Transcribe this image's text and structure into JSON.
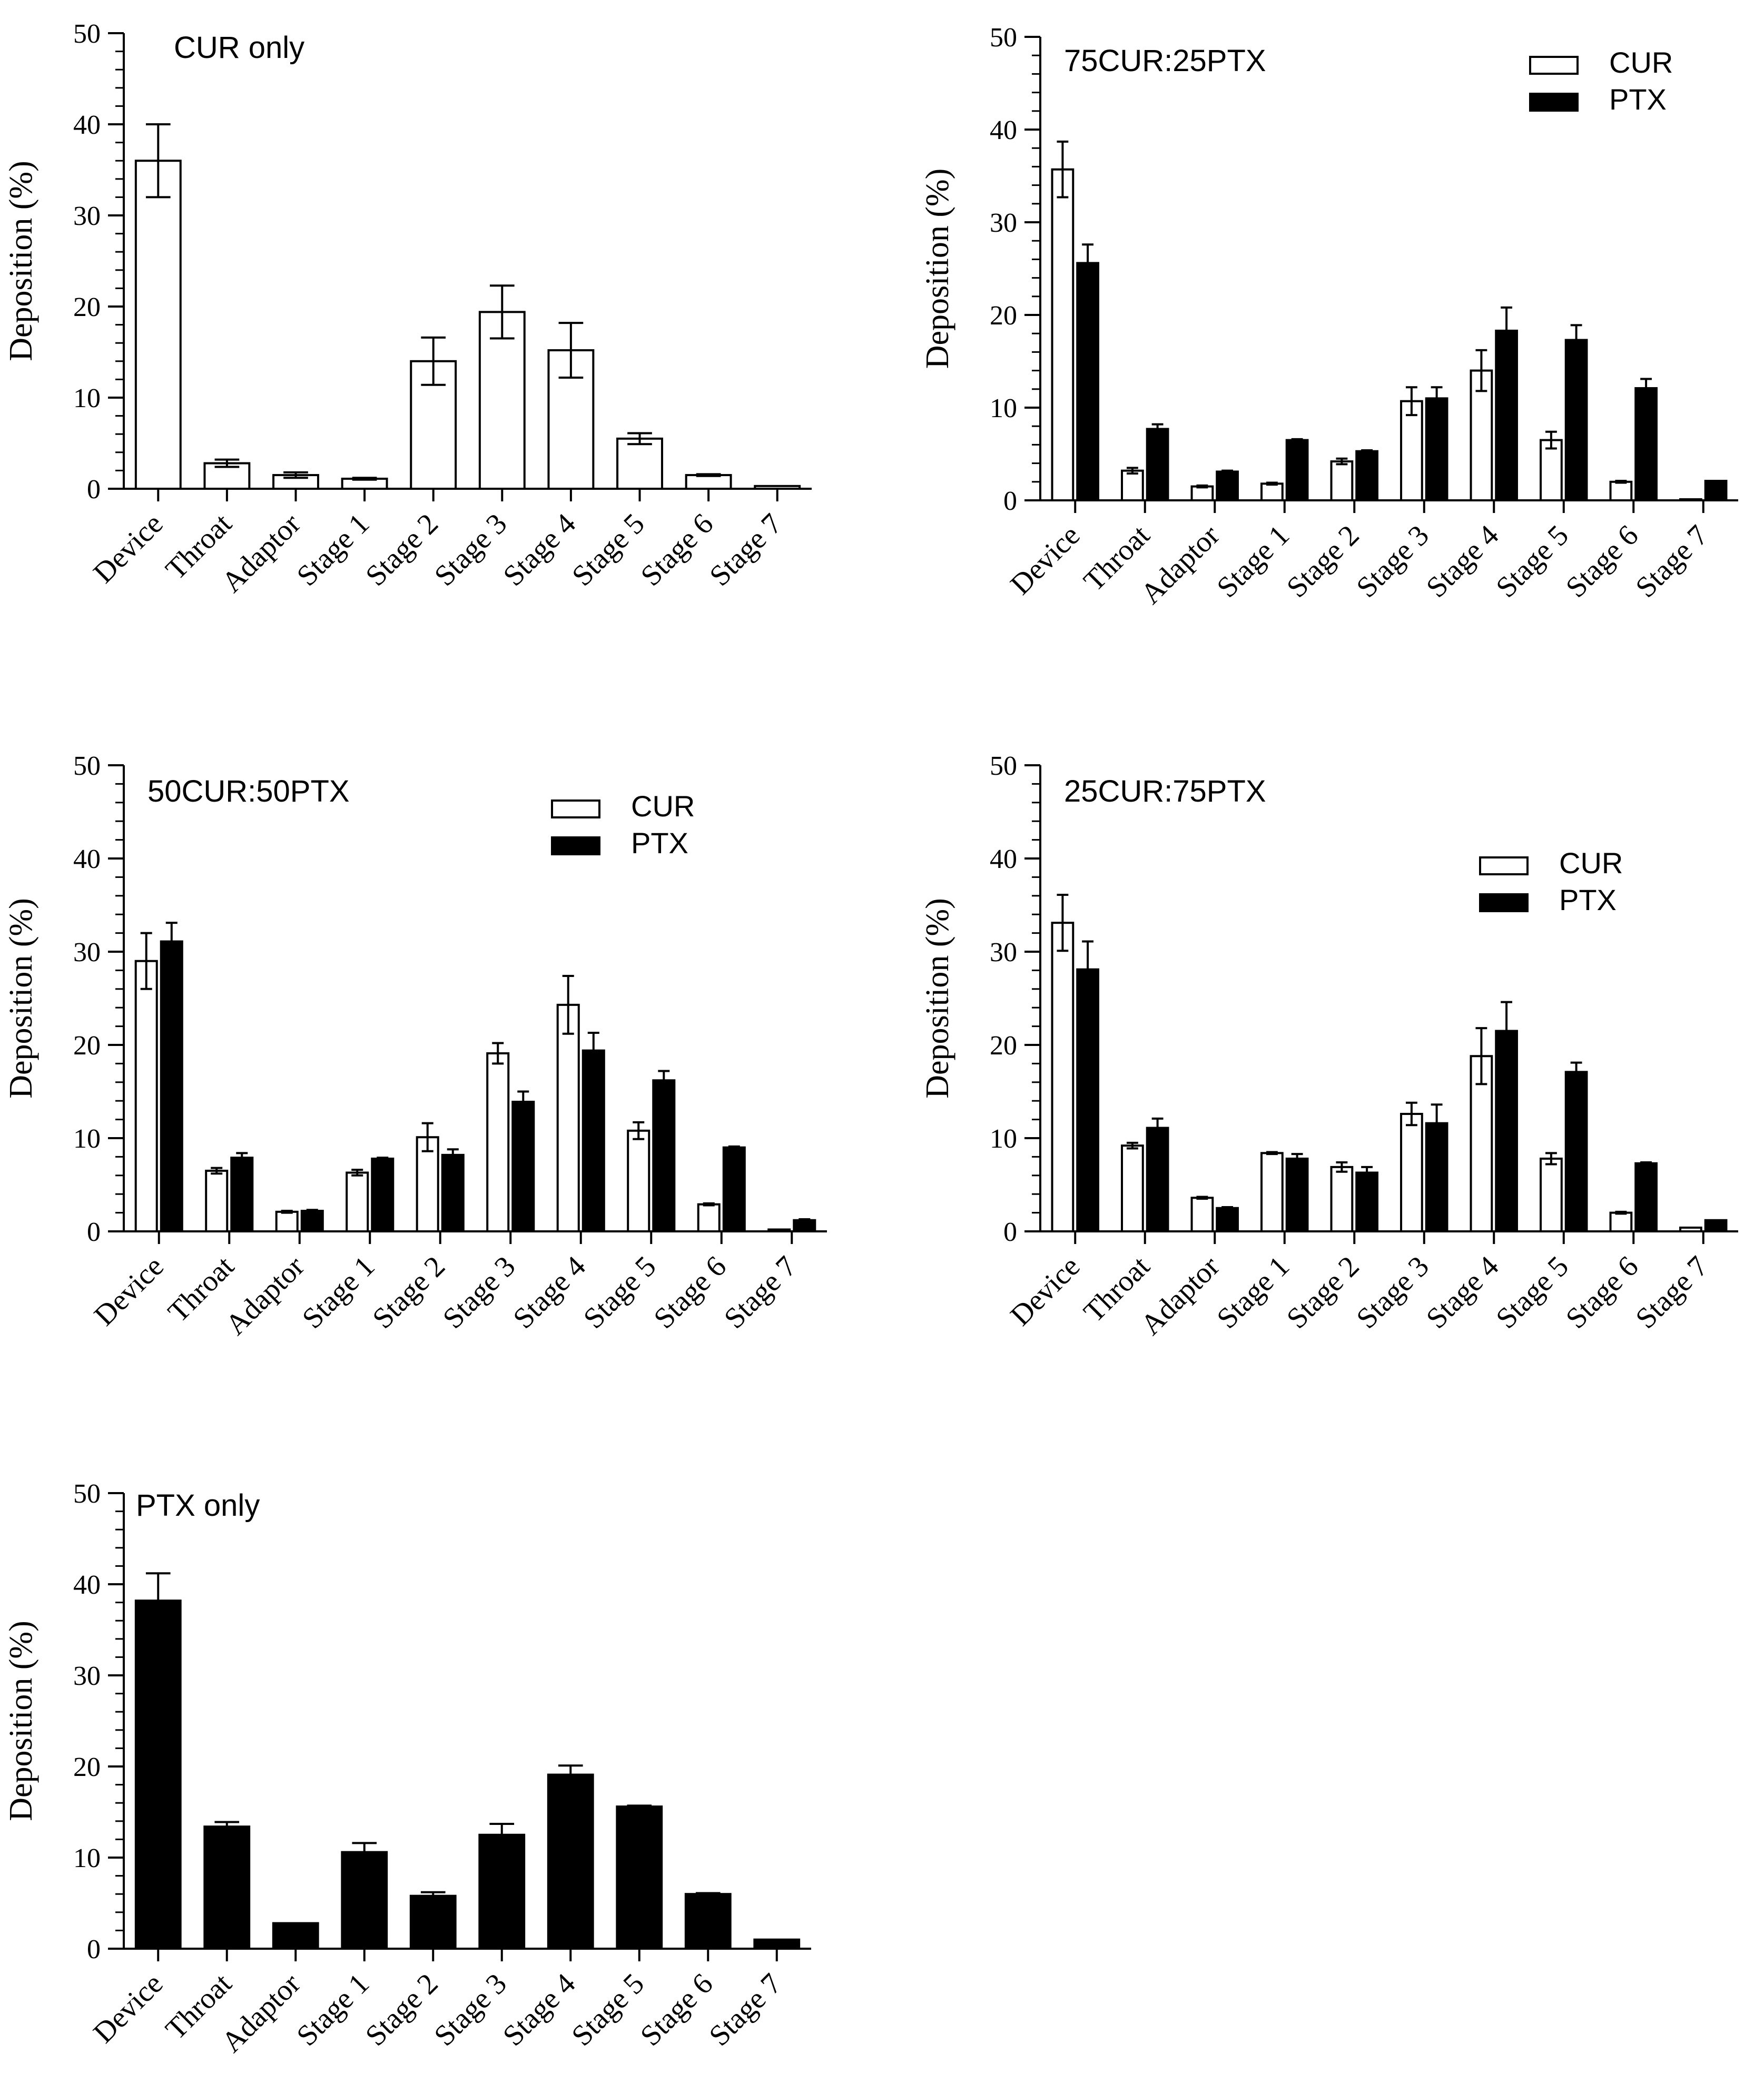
{
  "chart_data": [
    {
      "type": "bar",
      "title": "CUR only",
      "xlabel": "",
      "ylabel": "Deposition (%)",
      "ylim": [
        0,
        50
      ],
      "yticks": [
        0,
        10,
        20,
        30,
        40,
        50
      ],
      "categories": [
        "Device",
        "Throat",
        "Adaptor",
        "Stage 1",
        "Stage 2",
        "Stage 3",
        "Stage 4",
        "Stage 5",
        "Stage 6",
        "Stage 7"
      ],
      "legend": [],
      "series": [
        {
          "name": "CUR",
          "color": "#ffffff",
          "values": [
            36.0,
            2.8,
            1.5,
            1.1,
            14.0,
            19.4,
            15.2,
            5.5,
            1.5,
            0.3
          ],
          "errors": [
            4.0,
            0.4,
            0.3,
            0.1,
            2.6,
            2.9,
            3.0,
            0.6,
            0.1,
            0.05
          ]
        }
      ]
    },
    {
      "type": "bar",
      "title": "75CUR:25PTX",
      "xlabel": "",
      "ylabel": "Deposition (%)",
      "ylim": [
        0,
        50
      ],
      "yticks": [
        0,
        10,
        20,
        30,
        40,
        50
      ],
      "categories": [
        "Device",
        "Throat",
        "Adaptor",
        "Stage 1",
        "Stage 2",
        "Stage 3",
        "Stage 4",
        "Stage 5",
        "Stage 6",
        "Stage 7"
      ],
      "legend": [
        "CUR",
        "PTX"
      ],
      "series": [
        {
          "name": "CUR",
          "color": "#ffffff",
          "values": [
            35.7,
            3.2,
            1.5,
            1.8,
            4.2,
            10.7,
            14.0,
            6.5,
            2.0,
            0.1
          ],
          "errors": [
            3.0,
            0.3,
            0.1,
            0.1,
            0.3,
            1.5,
            2.2,
            0.9,
            0.1,
            0.05
          ]
        },
        {
          "name": "PTX",
          "color": "#000000",
          "values": [
            25.6,
            7.7,
            3.1,
            6.5,
            5.3,
            11.0,
            18.3,
            17.3,
            12.1,
            2.1
          ],
          "errors": [
            2.0,
            0.5,
            0.1,
            0.1,
            0.1,
            1.2,
            2.5,
            1.6,
            1.0,
            0.05
          ]
        }
      ]
    },
    {
      "type": "bar",
      "title": "50CUR:50PTX",
      "xlabel": "",
      "ylabel": "Deposition (%)",
      "ylim": [
        0,
        50
      ],
      "yticks": [
        0,
        10,
        20,
        30,
        40,
        50
      ],
      "categories": [
        "Device",
        "Throat",
        "Adaptor",
        "Stage 1",
        "Stage 2",
        "Stage 3",
        "Stage 4",
        "Stage 5",
        "Stage 6",
        "Stage 7"
      ],
      "legend": [
        "CUR",
        "PTX"
      ],
      "series": [
        {
          "name": "CUR",
          "color": "#ffffff",
          "values": [
            29.0,
            6.5,
            2.1,
            6.3,
            10.1,
            19.1,
            24.3,
            10.8,
            2.9,
            0.2
          ],
          "errors": [
            3.0,
            0.3,
            0.1,
            0.3,
            1.5,
            1.1,
            3.1,
            0.9,
            0.1,
            0.05
          ]
        },
        {
          "name": "PTX",
          "color": "#000000",
          "values": [
            31.1,
            7.9,
            2.2,
            7.8,
            8.2,
            13.9,
            19.4,
            16.2,
            9.0,
            1.2
          ],
          "errors": [
            2.0,
            0.5,
            0.1,
            0.1,
            0.6,
            1.1,
            1.9,
            1.0,
            0.1,
            0.1
          ]
        }
      ]
    },
    {
      "type": "bar",
      "title": "25CUR:75PTX",
      "xlabel": "",
      "ylabel": "Deposition (%)",
      "ylim": [
        0,
        50
      ],
      "yticks": [
        0,
        10,
        20,
        30,
        40,
        50
      ],
      "categories": [
        "Device",
        "Throat",
        "Adaptor",
        "Stage 1",
        "Stage 2",
        "Stage 3",
        "Stage 4",
        "Stage 5",
        "Stage 6",
        "Stage 7"
      ],
      "legend": [
        "CUR",
        "PTX"
      ],
      "series": [
        {
          "name": "CUR",
          "color": "#ffffff",
          "values": [
            33.1,
            9.2,
            3.6,
            8.4,
            6.9,
            12.6,
            18.8,
            7.8,
            2.0,
            0.4
          ],
          "errors": [
            3.0,
            0.3,
            0.1,
            0.1,
            0.5,
            1.2,
            3.0,
            0.6,
            0.1,
            0.05
          ]
        },
        {
          "name": "PTX",
          "color": "#000000",
          "values": [
            28.1,
            11.1,
            2.5,
            7.8,
            6.3,
            11.6,
            21.5,
            17.1,
            7.3,
            1.2
          ],
          "errors": [
            3.0,
            1.0,
            0.1,
            0.5,
            0.6,
            2.0,
            3.1,
            1.0,
            0.1,
            0.05
          ]
        }
      ]
    },
    {
      "type": "bar",
      "title": "PTX only",
      "xlabel": "",
      "ylabel": "Deposition (%)",
      "ylim": [
        0,
        50
      ],
      "yticks": [
        0,
        10,
        20,
        30,
        40,
        50
      ],
      "categories": [
        "Device",
        "Throat",
        "Adaptor",
        "Stage 1",
        "Stage 2",
        "Stage 3",
        "Stage 4",
        "Stage 5",
        "Stage 6",
        "Stage 7"
      ],
      "legend": [],
      "series": [
        {
          "name": "PTX",
          "color": "#000000",
          "values": [
            38.2,
            13.4,
            2.8,
            10.6,
            5.8,
            12.5,
            19.1,
            15.6,
            6.0,
            1.0
          ],
          "errors": [
            3.0,
            0.5,
            0.05,
            1.0,
            0.4,
            1.2,
            1.0,
            0.1,
            0.1,
            0.05
          ]
        }
      ]
    }
  ]
}
